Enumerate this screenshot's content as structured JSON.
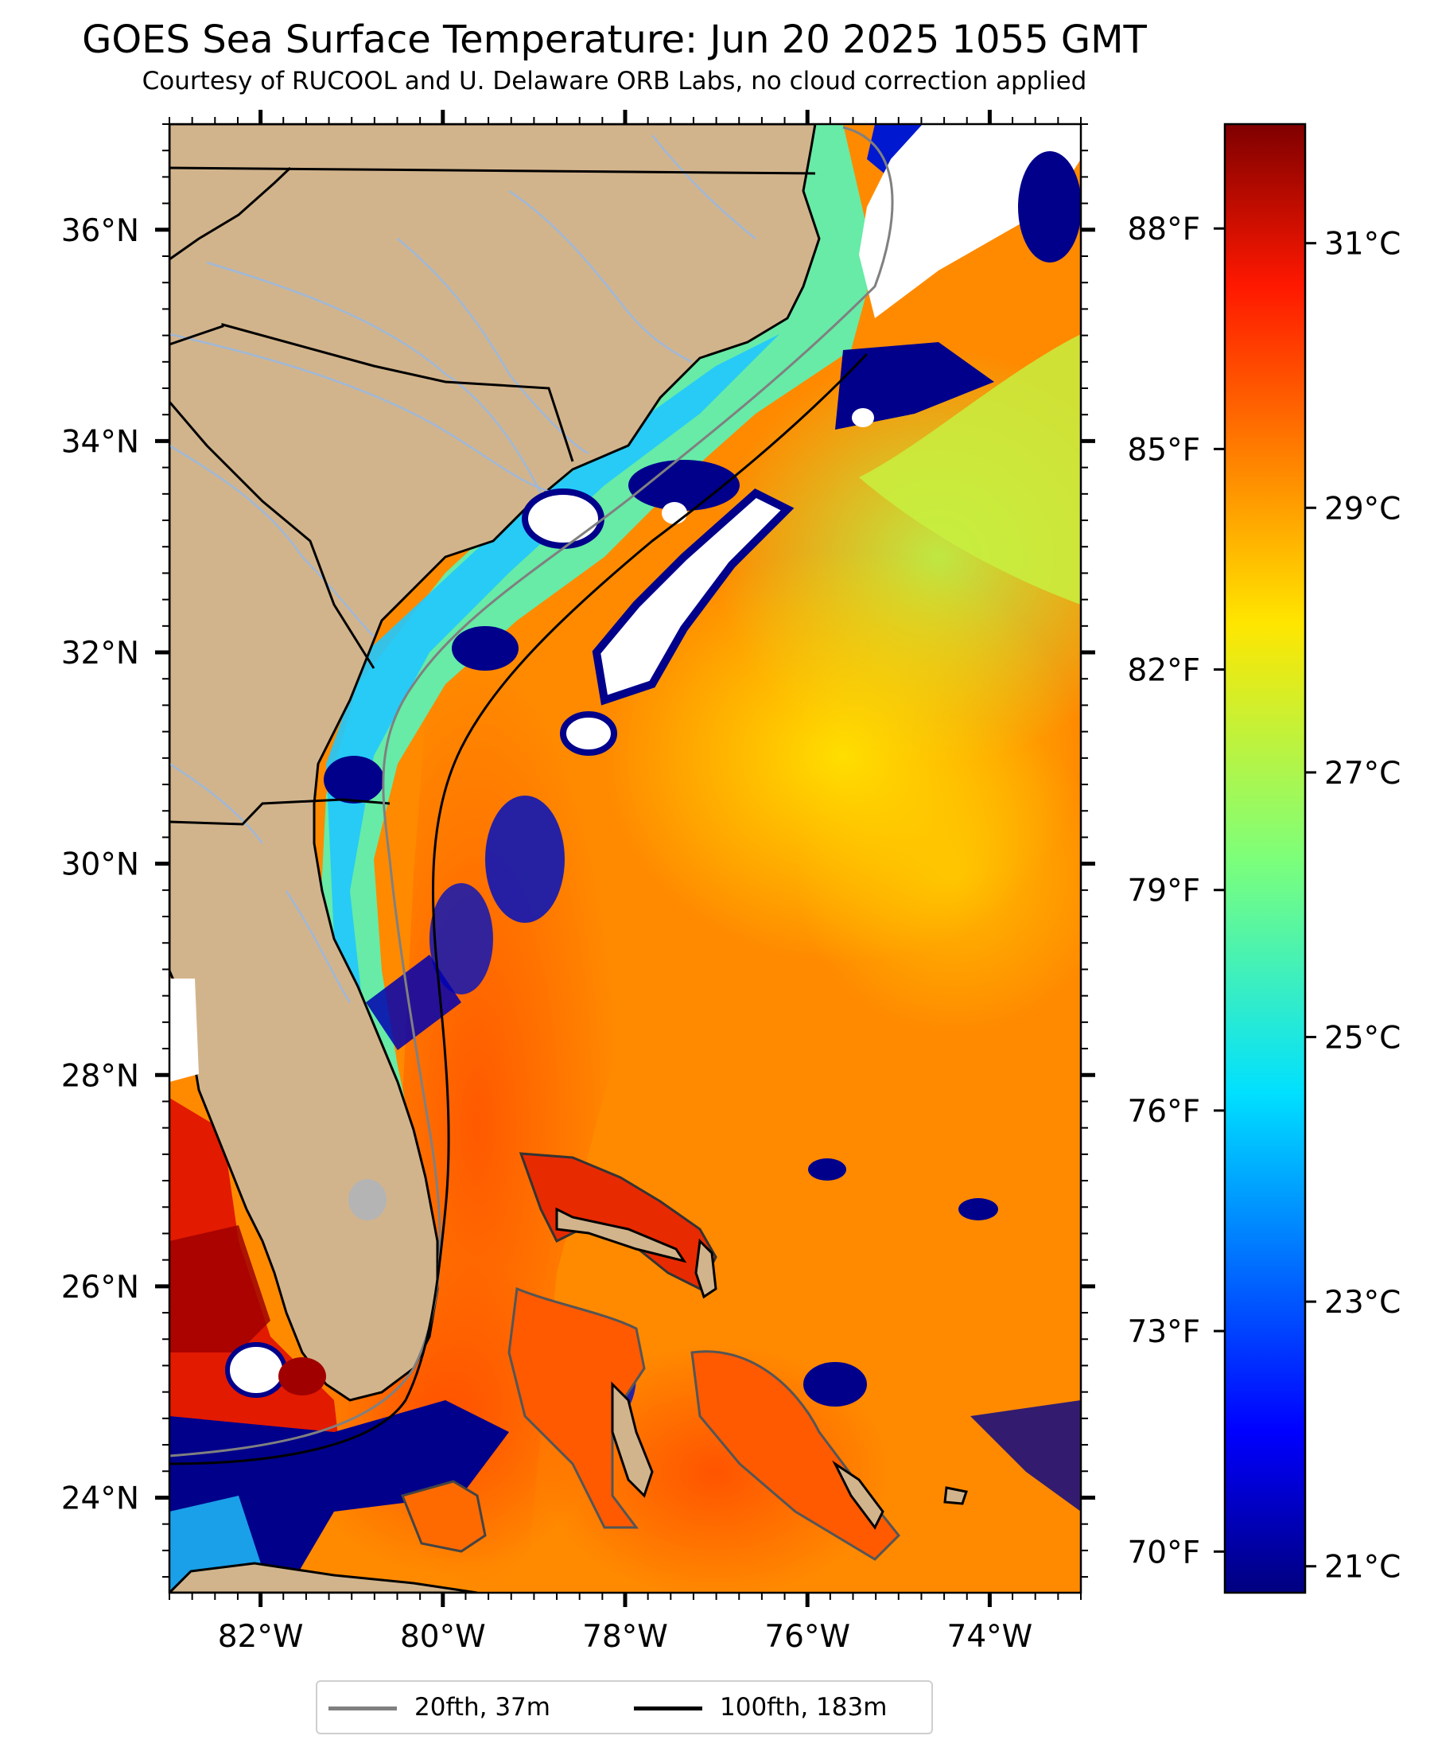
{
  "title": "GOES Sea Surface Temperature: Jun 20 2025 1055 GMT",
  "subtitle": "Courtesy of RUCOOL and U. Delaware ORB Labs, no cloud correction applied",
  "map": {
    "lon_range": [
      -83.0,
      -73.0
    ],
    "lat_range": [
      23.1,
      37.0
    ],
    "lon_ticks": [
      {
        "value": -82,
        "label": "82°W"
      },
      {
        "value": -80,
        "label": "80°W"
      },
      {
        "value": -78,
        "label": "78°W"
      },
      {
        "value": -76,
        "label": "76°W"
      },
      {
        "value": -74,
        "label": "74°W"
      }
    ],
    "lat_ticks": [
      {
        "value": 24,
        "label": "24°N"
      },
      {
        "value": 26,
        "label": "26°N"
      },
      {
        "value": 28,
        "label": "28°N"
      },
      {
        "value": 30,
        "label": "30°N"
      },
      {
        "value": 32,
        "label": "32°N"
      },
      {
        "value": 34,
        "label": "34°N"
      },
      {
        "value": 36,
        "label": "36°N"
      }
    ],
    "colors": {
      "land": "#d2b48c",
      "cloud": "#ffffff",
      "warm_water": "#ff8a00",
      "cold_water": "#00008b",
      "lake": "#b4b4b4",
      "river": "#9fb8d8"
    }
  },
  "colorbar": {
    "colormap": "jet",
    "celsius_range": [
      20.8,
      31.9
    ],
    "celsius_ticks": [
      {
        "value": 21,
        "label": "21°C"
      },
      {
        "value": 23,
        "label": "23°C"
      },
      {
        "value": 25,
        "label": "25°C"
      },
      {
        "value": 27,
        "label": "27°C"
      },
      {
        "value": 29,
        "label": "29°C"
      },
      {
        "value": 31,
        "label": "31°C"
      }
    ],
    "fahrenheit_ticks": [
      {
        "value": 70,
        "label": "70°F"
      },
      {
        "value": 73,
        "label": "73°F"
      },
      {
        "value": 76,
        "label": "76°F"
      },
      {
        "value": 79,
        "label": "79°F"
      },
      {
        "value": 82,
        "label": "82°F"
      },
      {
        "value": 85,
        "label": "85°F"
      },
      {
        "value": 88,
        "label": "88°F"
      }
    ]
  },
  "legend": {
    "items": [
      {
        "label": "20fth, 37m",
        "color": "#808080"
      },
      {
        "label": "100fth, 183m",
        "color": "#000000"
      }
    ]
  }
}
